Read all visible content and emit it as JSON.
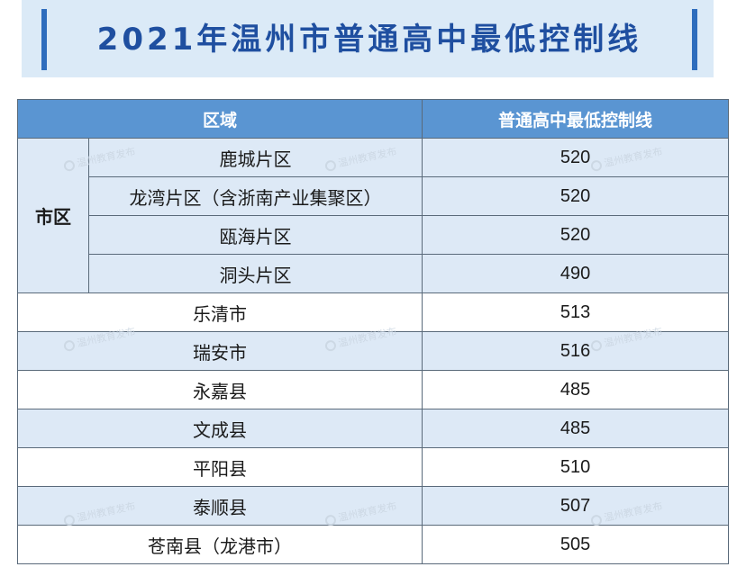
{
  "title": "2021年温州市普通高中最低控制线",
  "table": {
    "header_region": "区域",
    "header_score": "普通高中最低控制线",
    "group_label": "市区",
    "group_rows": [
      {
        "region": "鹿城片区",
        "score": "520"
      },
      {
        "region": "龙湾片区（含浙南产业集聚区）",
        "score": "520"
      },
      {
        "region": "瓯海片区",
        "score": "520"
      },
      {
        "region": "洞头片区",
        "score": "490"
      }
    ],
    "rows": [
      {
        "region": "乐清市",
        "score": "513"
      },
      {
        "region": "瑞安市",
        "score": "516"
      },
      {
        "region": "永嘉县",
        "score": "485"
      },
      {
        "region": "文成县",
        "score": "485"
      },
      {
        "region": "平阳县",
        "score": "510"
      },
      {
        "region": "泰顺县",
        "score": "507"
      },
      {
        "region": "苍南县（龙港市）",
        "score": "505"
      }
    ]
  },
  "watermark": "温州教育发布",
  "colors": {
    "header_bg": "#5a95d2",
    "shade": "#dde9f6",
    "accent": "#2e6dbd",
    "title": "#1f4fa0"
  }
}
